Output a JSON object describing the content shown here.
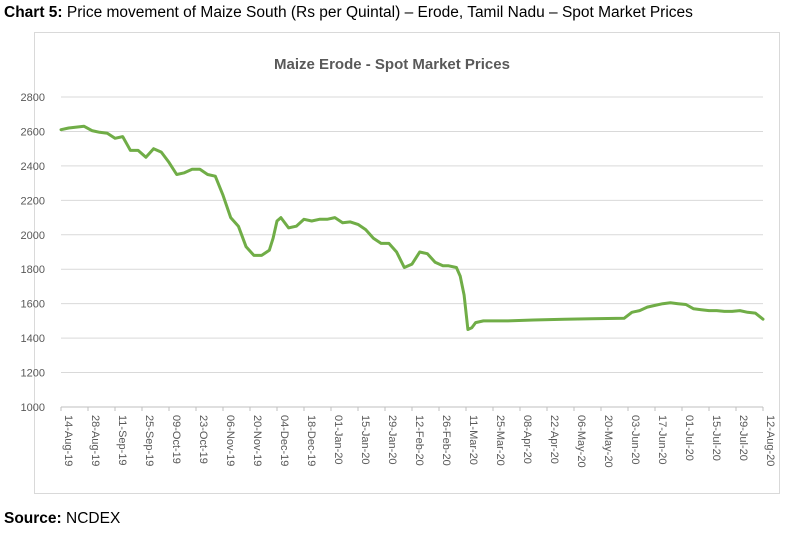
{
  "caption": {
    "label": "Chart 5:",
    "text": " Price movement of Maize South (Rs per Quintal) – Erode, Tamil Nadu – Spot Market Prices"
  },
  "source": {
    "label": "Source:",
    "text": " NCDEX"
  },
  "chart_data": {
    "type": "line",
    "title": "Maize Erode - Spot Market Prices",
    "xlabel": "",
    "ylabel": "",
    "ylim": [
      1000,
      2800
    ],
    "yticks": [
      1000,
      1200,
      1400,
      1600,
      1800,
      2000,
      2200,
      2400,
      2600,
      2800
    ],
    "xlim": [
      "2019-08-14",
      "2020-08-12"
    ],
    "xtick_labels": [
      "14-Aug-19",
      "28-Aug-19",
      "11-Sep-19",
      "25-Sep-19",
      "09-Oct-19",
      "23-Oct-19",
      "06-Nov-19",
      "20-Nov-19",
      "04-Dec-19",
      "18-Dec-19",
      "01-Jan-20",
      "15-Jan-20",
      "29-Jan-20",
      "12-Feb-20",
      "26-Feb-20",
      "11-Mar-20",
      "25-Mar-20",
      "08-Apr-20",
      "22-Apr-20",
      "06-May-20",
      "20-May-20",
      "03-Jun-20",
      "17-Jun-20",
      "01-Jul-20",
      "15-Jul-20",
      "29-Jul-20",
      "12-Aug-20"
    ],
    "grid": true,
    "legend": "none",
    "color": "#70ad47",
    "series": [
      {
        "x": [
          "2019-08-14",
          "2019-08-18",
          "2019-08-22",
          "2019-08-26",
          "2019-08-30",
          "2019-09-03",
          "2019-09-07",
          "2019-09-11",
          "2019-09-15",
          "2019-09-19",
          "2019-09-23",
          "2019-09-27",
          "2019-10-01",
          "2019-10-05",
          "2019-10-09",
          "2019-10-13",
          "2019-10-17",
          "2019-10-21",
          "2019-10-25",
          "2019-10-29",
          "2019-11-02",
          "2019-11-06",
          "2019-11-10",
          "2019-11-14",
          "2019-11-18",
          "2019-11-22",
          "2019-11-26",
          "2019-11-30",
          "2019-12-02",
          "2019-12-04",
          "2019-12-06",
          "2019-12-10",
          "2019-12-14",
          "2019-12-18",
          "2019-12-22",
          "2019-12-26",
          "2019-12-30",
          "2020-01-03",
          "2020-01-07",
          "2020-01-11",
          "2020-01-15",
          "2020-01-19",
          "2020-01-23",
          "2020-01-27",
          "2020-01-31",
          "2020-02-04",
          "2020-02-08",
          "2020-02-12",
          "2020-02-16",
          "2020-02-20",
          "2020-02-24",
          "2020-02-28",
          "2020-03-02",
          "2020-03-06",
          "2020-03-08",
          "2020-03-10",
          "2020-03-12",
          "2020-03-14",
          "2020-03-16",
          "2020-03-20",
          "2020-04-01",
          "2020-04-15",
          "2020-05-01",
          "2020-05-15",
          "2020-06-01",
          "2020-06-05",
          "2020-06-09",
          "2020-06-13",
          "2020-06-17",
          "2020-06-21",
          "2020-06-25",
          "2020-06-29",
          "2020-07-03",
          "2020-07-07",
          "2020-07-11",
          "2020-07-15",
          "2020-07-19",
          "2020-07-23",
          "2020-07-27",
          "2020-07-31",
          "2020-08-04",
          "2020-08-08",
          "2020-08-12"
        ],
        "y": [
          2610,
          2620,
          2625,
          2630,
          2605,
          2595,
          2590,
          2560,
          2570,
          2490,
          2490,
          2450,
          2500,
          2480,
          2420,
          2350,
          2360,
          2380,
          2380,
          2350,
          2340,
          2230,
          2100,
          2050,
          1930,
          1880,
          1880,
          1910,
          1980,
          2080,
          2100,
          2040,
          2050,
          2090,
          2080,
          2090,
          2090,
          2100,
          2070,
          2075,
          2060,
          2030,
          1980,
          1950,
          1950,
          1900,
          1810,
          1830,
          1900,
          1890,
          1840,
          1820,
          1820,
          1810,
          1760,
          1650,
          1450,
          1460,
          1490,
          1500,
          1500,
          1505,
          1510,
          1512,
          1515,
          1550,
          1560,
          1580,
          1590,
          1600,
          1605,
          1600,
          1595,
          1570,
          1565,
          1560,
          1560,
          1555,
          1555,
          1560,
          1550,
          1545,
          1510
        ]
      }
    ]
  }
}
